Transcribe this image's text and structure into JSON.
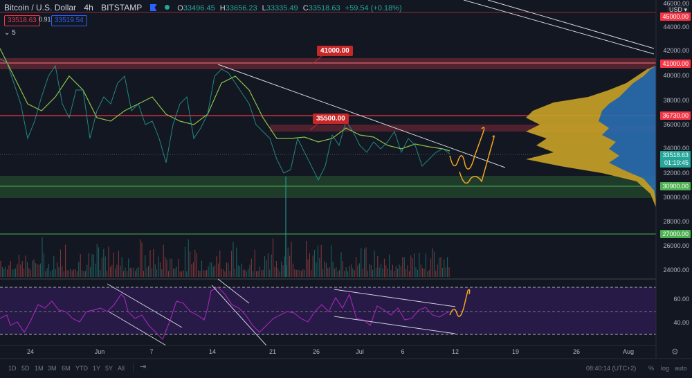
{
  "header": {
    "symbol": "Bitcoin / U.S. Dollar",
    "interval": "4h",
    "exchange": "BITSTAMP",
    "ohlc": {
      "o_label": "O",
      "o": "33496.45",
      "h_label": "H",
      "h": "33656.23",
      "l_label": "L",
      "l": "33335.49",
      "c_label": "C",
      "c": "33518.63",
      "change": "+59.54 (+0.18%)"
    },
    "sell_price": "33518.63",
    "spread": "0.91",
    "buy_price": "33519.54",
    "indicator_toggle": "⌄ 5"
  },
  "price_axis": {
    "currency": "USD ▾",
    "ticks": [
      "46000.00",
      "44000.00",
      "42000.00",
      "40000.00",
      "38000.00",
      "36000.00",
      "34000.00",
      "32000.00",
      "30000.00",
      "28000.00",
      "26000.00",
      "24000.00"
    ],
    "tags": {
      "top_red": "45000.00",
      "r41000": "41000.00",
      "r36730": "36730.00",
      "current": "33518.63",
      "countdown": "01:19:45",
      "g30900": "30900.00",
      "g27000": "27000.00"
    }
  },
  "rsi_axis": {
    "ticks": [
      "60.00",
      "40.00"
    ]
  },
  "annotations": {
    "a41000": "41000.00",
    "a35500": "35500.00"
  },
  "time_axis": {
    "labels": [
      "24",
      "Jun",
      "7",
      "14",
      "21",
      "26",
      "Jul",
      "6",
      "12",
      "19",
      "26",
      "Aug"
    ]
  },
  "bottom_bar": {
    "ranges": [
      "1D",
      "5D",
      "1M",
      "3M",
      "6M",
      "YTD",
      "1Y",
      "5Y",
      "All"
    ],
    "clock": "08:40:14 (UTC+2)",
    "percent": "%",
    "log": "log",
    "auto": "auto"
  },
  "colors": {
    "up": "#26a69a",
    "down": "#ef5350",
    "resistance": "#f23645",
    "support": "#4caf50",
    "ma": "#8bc34a",
    "rsi": "#9c27b0",
    "projection": "#f5a623",
    "trend": "#d1d4dc"
  },
  "chart_data": {
    "type": "candlestick",
    "title": "Bitcoin / U.S. Dollar 4h BITSTAMP",
    "ylim": [
      23000,
      47000
    ],
    "x_labels": [
      "24",
      "Jun",
      "7",
      "14",
      "21",
      "26",
      "Jul",
      "6",
      "12",
      "19",
      "26",
      "Aug"
    ],
    "horizontal_levels": [
      {
        "price": 45000,
        "type": "resistance"
      },
      {
        "price": 41000,
        "type": "resistance",
        "zone": [
          40600,
          41400
        ]
      },
      {
        "price": 36730,
        "type": "resistance"
      },
      {
        "price": 35500,
        "type": "resistance_zone",
        "zone": [
          35300,
          35800
        ]
      },
      {
        "price": 30900,
        "type": "support",
        "zone": [
          30000,
          31600
        ]
      },
      {
        "price": 27000,
        "type": "support"
      }
    ],
    "approx_closes": [
      41000,
      39000,
      37500,
      40500,
      38500,
      36000,
      32500,
      35500,
      38000,
      37000,
      33500,
      35500,
      38500,
      40800,
      39500,
      37000,
      34000,
      32500,
      31500,
      33500,
      35000,
      34000,
      35500,
      34500,
      33500,
      34800,
      33000,
      32800,
      33500,
      33518.63
    ],
    "last_price": 33518.63,
    "rsi": {
      "levels": [
        70,
        50,
        30
      ],
      "ticks": [
        "60.00",
        "40.00"
      ]
    }
  }
}
